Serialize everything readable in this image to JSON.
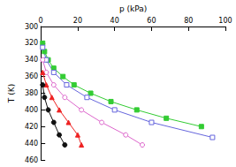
{
  "chart_data": {
    "type": "line",
    "x_label": "p (kPa)",
    "y_label": "T (K)",
    "xlim": [
      0,
      100
    ],
    "xticks": [
      0,
      20,
      40,
      60,
      80,
      100
    ],
    "ylim": [
      300,
      460
    ],
    "yticks": [
      300,
      320,
      340,
      360,
      380,
      400,
      420,
      440,
      460
    ],
    "grid": false,
    "series": [
      {
        "color": "#33cc33",
        "marker": "square",
        "line_style": "solid",
        "x": [
          1,
          2,
          4,
          7,
          12,
          18,
          27,
          38,
          52,
          68,
          87
        ],
        "values": [
          320,
          330,
          340,
          350,
          360,
          370,
          380,
          390,
          400,
          410,
          420
        ]
      },
      {
        "color": "#6666dd",
        "marker": "square_open",
        "line_style": "solid",
        "x": [
          1,
          3,
          7,
          14,
          25,
          40,
          60,
          93
        ],
        "values": [
          325,
          340,
          355,
          370,
          385,
          400,
          415,
          433
        ]
      },
      {
        "color": "#dd66cc",
        "marker": "circle_open",
        "line_style": "solid",
        "x": [
          1,
          3,
          7,
          13,
          22,
          33,
          46,
          55
        ],
        "values": [
          340,
          355,
          370,
          385,
          400,
          415,
          430,
          442
        ]
      },
      {
        "color": "#ee2222",
        "marker": "triangle",
        "line_style": "solid",
        "x": [
          1,
          3,
          6,
          10,
          15,
          20,
          22
        ],
        "values": [
          355,
          370,
          385,
          400,
          415,
          430,
          442
        ]
      },
      {
        "color": "#111111",
        "marker": "circle",
        "line_style": "solid",
        "x": [
          1,
          2,
          4,
          7,
          10,
          13
        ],
        "values": [
          370,
          385,
          400,
          415,
          430,
          442
        ]
      }
    ]
  }
}
